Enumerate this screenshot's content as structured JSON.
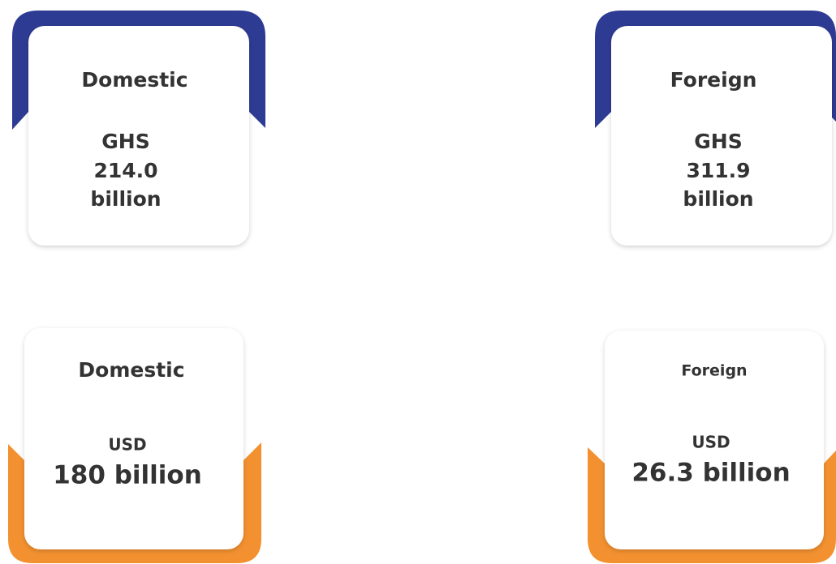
{
  "cards": [
    {
      "title": "Domestic",
      "lines": [
        "GHS",
        "214.0",
        "billion"
      ]
    },
    {
      "title": "Foreign",
      "lines": [
        "GHS",
        "311.9",
        "billion"
      ]
    },
    {
      "title": "Domestic",
      "lines": [
        "USD",
        "180 billion"
      ]
    },
    {
      "title": "Foreign",
      "lines": [
        "USD",
        "26.3 billion"
      ]
    }
  ]
}
